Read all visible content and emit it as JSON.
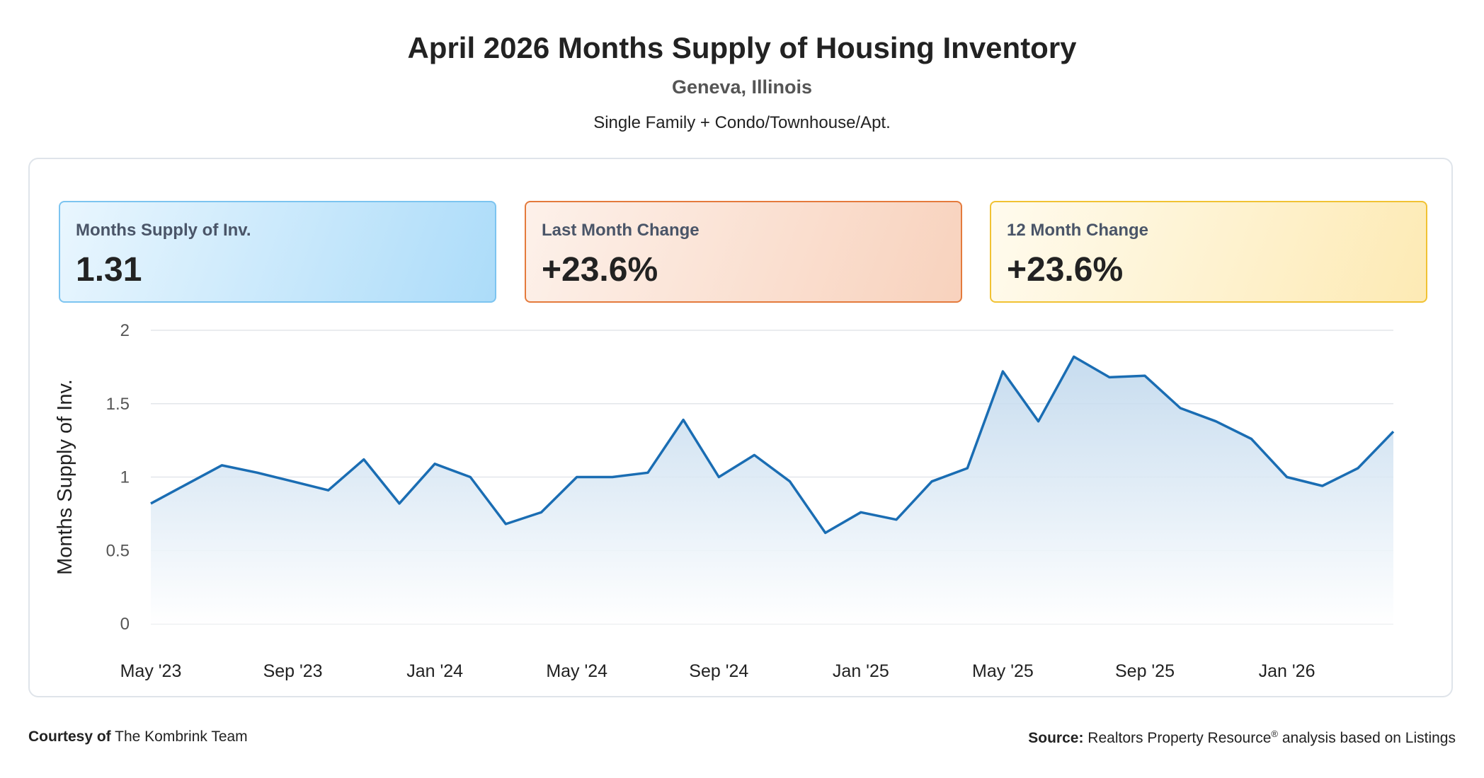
{
  "header": {
    "title": "April 2026 Months Supply of Housing Inventory",
    "location": "Geneva, Illinois",
    "property_types": "Single Family + Condo/Townhouse/Apt."
  },
  "cards": [
    {
      "label": "Months Supply of Inv.",
      "value": "1.31",
      "theme": "blue"
    },
    {
      "label": "Last Month Change",
      "value": "+23.6%",
      "theme": "orange"
    },
    {
      "label": "12 Month Change",
      "value": "+23.6%",
      "theme": "yellow"
    }
  ],
  "chart_data": {
    "type": "area",
    "title": "",
    "xlabel": "",
    "ylabel": "Months Supply of Inv.",
    "ylim": [
      0,
      2
    ],
    "yticks": [
      "0",
      "0.5",
      "1",
      "1.5",
      "2"
    ],
    "xtick_labels": [
      "May '23",
      "Sep '23",
      "Jan '24",
      "May '24",
      "Sep '24",
      "Jan '25",
      "May '25",
      "Sep '25",
      "Jan '26"
    ],
    "xtick_every": 4,
    "grid": true,
    "line_color": "#1a6db3",
    "fill_color": "#c7dcef",
    "x": [
      "May '23",
      "Jun '23",
      "Jul '23",
      "Aug '23",
      "Sep '23",
      "Oct '23",
      "Nov '23",
      "Dec '23",
      "Jan '24",
      "Feb '24",
      "Mar '24",
      "Apr '24",
      "May '24",
      "Jun '24",
      "Jul '24",
      "Aug '24",
      "Sep '24",
      "Oct '24",
      "Nov '24",
      "Dec '24",
      "Jan '25",
      "Feb '25",
      "Mar '25",
      "Apr '25",
      "May '25",
      "Jun '25",
      "Jul '25",
      "Aug '25",
      "Sep '25",
      "Oct '25",
      "Nov '25",
      "Dec '25",
      "Jan '26",
      "Feb '26",
      "Mar '26",
      "Apr '26"
    ],
    "values": [
      0.82,
      0.95,
      1.08,
      1.03,
      0.97,
      0.91,
      1.12,
      0.82,
      1.09,
      1.0,
      0.68,
      0.76,
      1.0,
      1.0,
      1.03,
      1.39,
      1.0,
      1.15,
      0.97,
      0.62,
      0.76,
      0.71,
      0.97,
      1.06,
      1.72,
      1.38,
      1.82,
      1.68,
      1.69,
      1.47,
      1.38,
      1.26,
      1.0,
      0.94,
      1.06,
      1.31
    ]
  },
  "footer": {
    "courtesy_label": "Courtesy of",
    "courtesy_name": "The Kombrink Team",
    "source_label": "Source:",
    "source_text": "Realtors Property Resource",
    "source_reg": "®",
    "source_suffix": " analysis based on Listings"
  }
}
